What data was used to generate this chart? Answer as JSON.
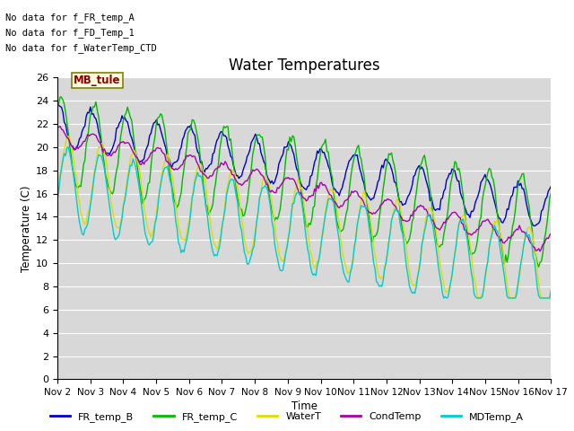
{
  "title": "Water Temperatures",
  "xlabel": "Time",
  "ylabel": "Temperature (C)",
  "ylim": [
    0,
    26
  ],
  "background_color": "#d8d8d8",
  "plot_bg_color": "#d8d8d8",
  "annotations": [
    "No data for f_FR_temp_A",
    "No data for f_FD_Temp_1",
    "No data for f_WaterTemp_CTD"
  ],
  "mb_tule_label": "MB_tule",
  "series_colors": {
    "FR_temp_B": "#0000cc",
    "FR_temp_C": "#00bb00",
    "WaterT": "#dddd00",
    "CondTemp": "#aa00aa",
    "MDTemp_A": "#00cccc"
  },
  "xtick_labels": [
    "Nov 2",
    "Nov 3",
    "Nov 4",
    "Nov 5",
    "Nov 6",
    "Nov 7",
    "Nov 8",
    "Nov 9",
    "Nov 10",
    "Nov 11",
    "Nov 12",
    "Nov 13",
    "Nov 14",
    "Nov 15",
    "Nov 16",
    "Nov 17"
  ],
  "ytick_values": [
    0,
    2,
    4,
    6,
    8,
    10,
    12,
    14,
    16,
    18,
    20,
    22,
    24,
    26
  ],
  "grid_color": "#bbbbbb"
}
